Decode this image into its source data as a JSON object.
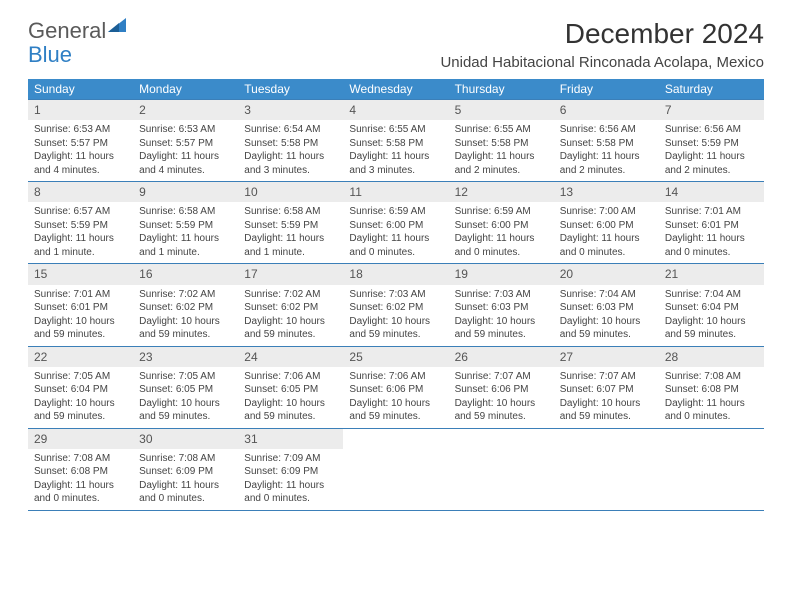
{
  "logo": {
    "word1": "General",
    "word2": "Blue"
  },
  "title": "December 2024",
  "location": "Unidad Habitacional Rinconada Acolapa, Mexico",
  "colors": {
    "header_bg": "#3b8bca",
    "header_text": "#ffffff",
    "daynum_bg": "#ececec",
    "border": "#3b7fb8",
    "text": "#444444",
    "logo_gray": "#5a5a5a",
    "logo_blue": "#2f7fc4"
  },
  "day_headers": [
    "Sunday",
    "Monday",
    "Tuesday",
    "Wednesday",
    "Thursday",
    "Friday",
    "Saturday"
  ],
  "layout": {
    "first_weekday_index": 0,
    "days_in_month": 31
  },
  "days": [
    {
      "n": 1,
      "sunrise": "6:53 AM",
      "sunset": "5:57 PM",
      "daylight": "11 hours and 4 minutes."
    },
    {
      "n": 2,
      "sunrise": "6:53 AM",
      "sunset": "5:57 PM",
      "daylight": "11 hours and 4 minutes."
    },
    {
      "n": 3,
      "sunrise": "6:54 AM",
      "sunset": "5:58 PM",
      "daylight": "11 hours and 3 minutes."
    },
    {
      "n": 4,
      "sunrise": "6:55 AM",
      "sunset": "5:58 PM",
      "daylight": "11 hours and 3 minutes."
    },
    {
      "n": 5,
      "sunrise": "6:55 AM",
      "sunset": "5:58 PM",
      "daylight": "11 hours and 2 minutes."
    },
    {
      "n": 6,
      "sunrise": "6:56 AM",
      "sunset": "5:58 PM",
      "daylight": "11 hours and 2 minutes."
    },
    {
      "n": 7,
      "sunrise": "6:56 AM",
      "sunset": "5:59 PM",
      "daylight": "11 hours and 2 minutes."
    },
    {
      "n": 8,
      "sunrise": "6:57 AM",
      "sunset": "5:59 PM",
      "daylight": "11 hours and 1 minute."
    },
    {
      "n": 9,
      "sunrise": "6:58 AM",
      "sunset": "5:59 PM",
      "daylight": "11 hours and 1 minute."
    },
    {
      "n": 10,
      "sunrise": "6:58 AM",
      "sunset": "5:59 PM",
      "daylight": "11 hours and 1 minute."
    },
    {
      "n": 11,
      "sunrise": "6:59 AM",
      "sunset": "6:00 PM",
      "daylight": "11 hours and 0 minutes."
    },
    {
      "n": 12,
      "sunrise": "6:59 AM",
      "sunset": "6:00 PM",
      "daylight": "11 hours and 0 minutes."
    },
    {
      "n": 13,
      "sunrise": "7:00 AM",
      "sunset": "6:00 PM",
      "daylight": "11 hours and 0 minutes."
    },
    {
      "n": 14,
      "sunrise": "7:01 AM",
      "sunset": "6:01 PM",
      "daylight": "11 hours and 0 minutes."
    },
    {
      "n": 15,
      "sunrise": "7:01 AM",
      "sunset": "6:01 PM",
      "daylight": "10 hours and 59 minutes."
    },
    {
      "n": 16,
      "sunrise": "7:02 AM",
      "sunset": "6:02 PM",
      "daylight": "10 hours and 59 minutes."
    },
    {
      "n": 17,
      "sunrise": "7:02 AM",
      "sunset": "6:02 PM",
      "daylight": "10 hours and 59 minutes."
    },
    {
      "n": 18,
      "sunrise": "7:03 AM",
      "sunset": "6:02 PM",
      "daylight": "10 hours and 59 minutes."
    },
    {
      "n": 19,
      "sunrise": "7:03 AM",
      "sunset": "6:03 PM",
      "daylight": "10 hours and 59 minutes."
    },
    {
      "n": 20,
      "sunrise": "7:04 AM",
      "sunset": "6:03 PM",
      "daylight": "10 hours and 59 minutes."
    },
    {
      "n": 21,
      "sunrise": "7:04 AM",
      "sunset": "6:04 PM",
      "daylight": "10 hours and 59 minutes."
    },
    {
      "n": 22,
      "sunrise": "7:05 AM",
      "sunset": "6:04 PM",
      "daylight": "10 hours and 59 minutes."
    },
    {
      "n": 23,
      "sunrise": "7:05 AM",
      "sunset": "6:05 PM",
      "daylight": "10 hours and 59 minutes."
    },
    {
      "n": 24,
      "sunrise": "7:06 AM",
      "sunset": "6:05 PM",
      "daylight": "10 hours and 59 minutes."
    },
    {
      "n": 25,
      "sunrise": "7:06 AM",
      "sunset": "6:06 PM",
      "daylight": "10 hours and 59 minutes."
    },
    {
      "n": 26,
      "sunrise": "7:07 AM",
      "sunset": "6:06 PM",
      "daylight": "10 hours and 59 minutes."
    },
    {
      "n": 27,
      "sunrise": "7:07 AM",
      "sunset": "6:07 PM",
      "daylight": "10 hours and 59 minutes."
    },
    {
      "n": 28,
      "sunrise": "7:08 AM",
      "sunset": "6:08 PM",
      "daylight": "11 hours and 0 minutes."
    },
    {
      "n": 29,
      "sunrise": "7:08 AM",
      "sunset": "6:08 PM",
      "daylight": "11 hours and 0 minutes."
    },
    {
      "n": 30,
      "sunrise": "7:08 AM",
      "sunset": "6:09 PM",
      "daylight": "11 hours and 0 minutes."
    },
    {
      "n": 31,
      "sunrise": "7:09 AM",
      "sunset": "6:09 PM",
      "daylight": "11 hours and 0 minutes."
    }
  ],
  "labels": {
    "sunrise": "Sunrise:",
    "sunset": "Sunset:",
    "daylight": "Daylight:"
  }
}
